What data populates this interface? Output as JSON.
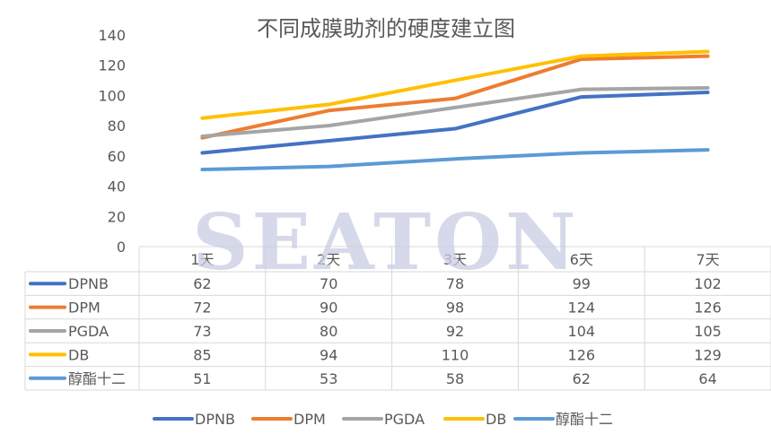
{
  "chart_data": {
    "type": "line",
    "title": "不同成膜助剂的硬度建立图",
    "categories": [
      "1天",
      "2天",
      "3天",
      "6天",
      "7天"
    ],
    "ylim": [
      0,
      140
    ],
    "yticks": [
      0,
      20,
      40,
      60,
      80,
      100,
      120,
      140
    ],
    "grid": false,
    "legend": "bottom",
    "data_table": true,
    "series": [
      {
        "name": "DPNB",
        "values": [
          62,
          70,
          78,
          99,
          102
        ],
        "color": "#4472C4"
      },
      {
        "name": "DPM",
        "values": [
          72,
          90,
          98,
          124,
          126
        ],
        "color": "#ED7D31"
      },
      {
        "name": "PGDA",
        "values": [
          73,
          80,
          92,
          104,
          105
        ],
        "color": "#A5A5A5"
      },
      {
        "name": "DB",
        "values": [
          85,
          94,
          110,
          126,
          129
        ],
        "color": "#FFC000"
      },
      {
        "name": "醇酯十二",
        "values": [
          51,
          53,
          58,
          62,
          64
        ],
        "color": "#5B9BD5"
      }
    ]
  },
  "watermark": "SEATON"
}
